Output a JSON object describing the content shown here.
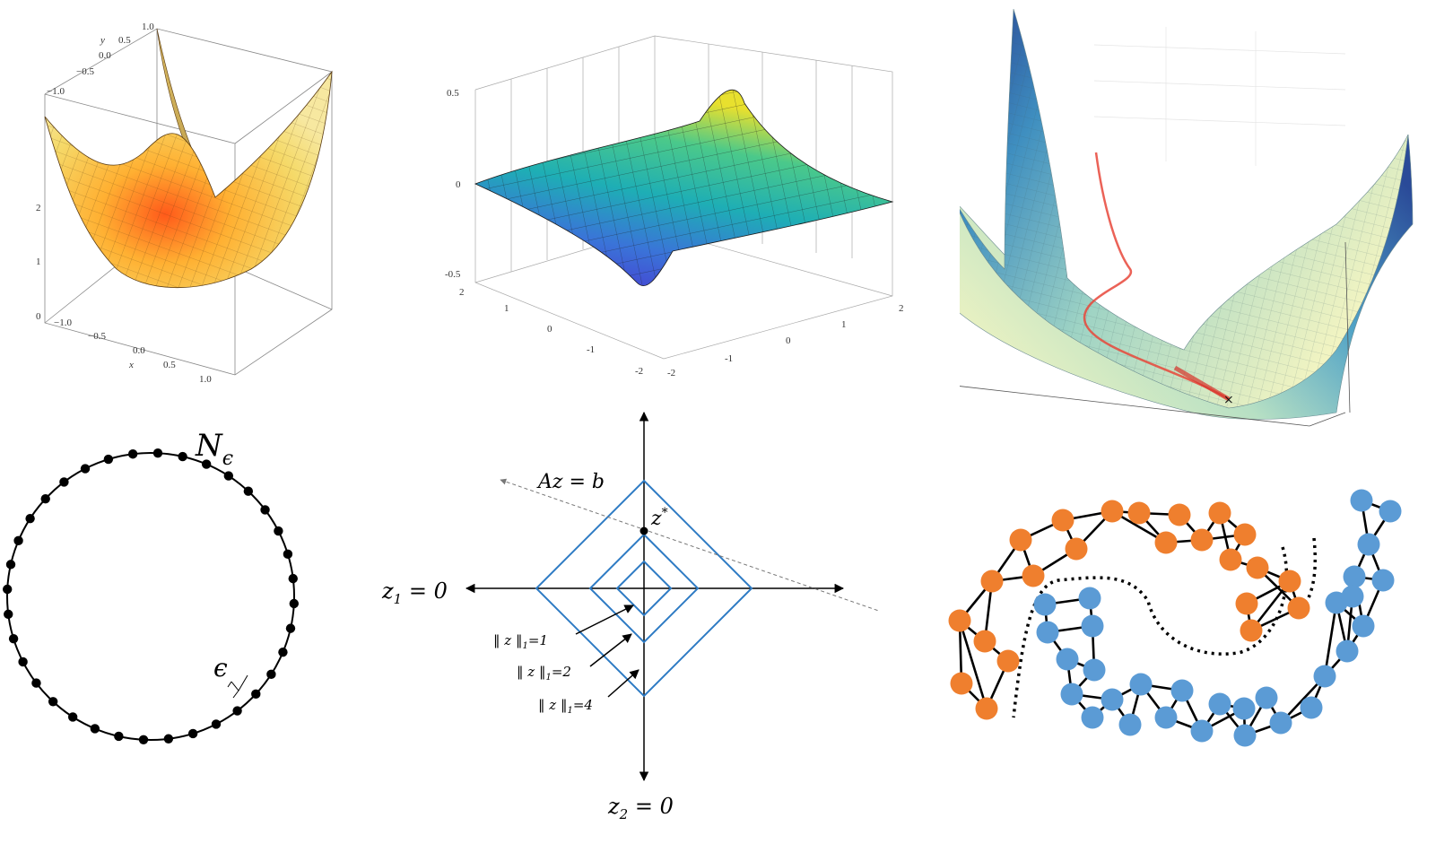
{
  "panel_bowl": {
    "x_label": "x",
    "y_label": "y",
    "x_ticks": [
      "−1.0",
      "−0.5",
      "0.0",
      "0.5",
      "1.0"
    ],
    "y_ticks": [
      "−1.0",
      "−0.5",
      "0.0",
      "0.5",
      "1.0"
    ],
    "z_ticks": [
      "0",
      "1",
      "2"
    ]
  },
  "panel_wave": {
    "z_ticks": [
      "0.5",
      "0",
      "-0.5"
    ],
    "left_ticks": [
      "2",
      "1",
      "0",
      "-1",
      "-2"
    ],
    "right_ticks": [
      "-2",
      "-1",
      "0",
      "1",
      "2"
    ]
  },
  "panel_net": {
    "label_main": "N",
    "label_sub": "ϵ",
    "eps_label": "ϵ",
    "point_count": 36
  },
  "panel_l1": {
    "line_label": "Az = b",
    "zstar_label": "z",
    "zstar_sup": "*",
    "axis_h_label": "z",
    "axis_h_sub": "1",
    "axis_h_rest": " = 0",
    "axis_v_label": "z",
    "axis_v_sub": "2",
    "axis_v_rest": " = 0",
    "norms": [
      {
        "pre": "‖ z ‖",
        "sub": "1",
        "val": "=1"
      },
      {
        "pre": "‖ z ‖",
        "sub": "1",
        "val": "=2"
      },
      {
        "pre": "‖ z ‖",
        "sub": "1",
        "val": "=4"
      }
    ]
  },
  "colors": {
    "orange": "#ef7f2e",
    "blue": "#5b9bd5",
    "diamond": "#2e7bc4",
    "path_red": "#e8473a"
  }
}
